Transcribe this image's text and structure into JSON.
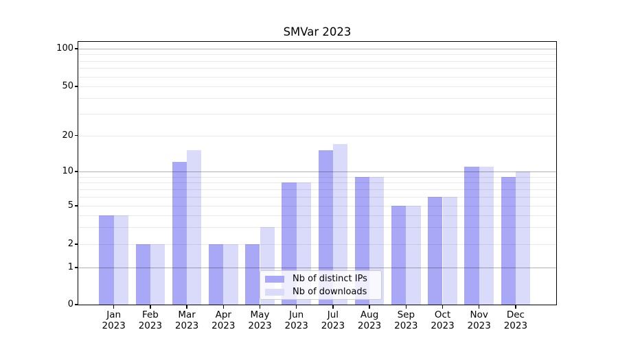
{
  "title": "SMVar 2023",
  "chart_data": {
    "type": "bar",
    "title": "SMVar 2023",
    "categories": [
      "Jan",
      "Feb",
      "Mar",
      "Apr",
      "May",
      "Jun",
      "Jul",
      "Aug",
      "Sep",
      "Oct",
      "Nov",
      "Dec"
    ],
    "category_year": "2023",
    "series": [
      {
        "name": "Nb of distinct IPs",
        "color": "#a8a8f7",
        "values": [
          4,
          2,
          12,
          2,
          2,
          8,
          15,
          9,
          5,
          6,
          11,
          9
        ]
      },
      {
        "name": "Nb of downloads",
        "color": "#dadafa",
        "values": [
          4,
          2,
          15,
          2,
          3,
          8,
          17,
          9,
          5,
          6,
          11,
          10
        ]
      }
    ],
    "yscale": "symlog",
    "yticks": [
      0,
      1,
      2,
      5,
      10,
      20,
      50,
      100
    ],
    "ylim": [
      0,
      114
    ],
    "xlabel": "",
    "ylabel": "",
    "grid": "horizontal; dark lines at decades 1/10/100, faint log minors",
    "legend_position": "lower center"
  }
}
